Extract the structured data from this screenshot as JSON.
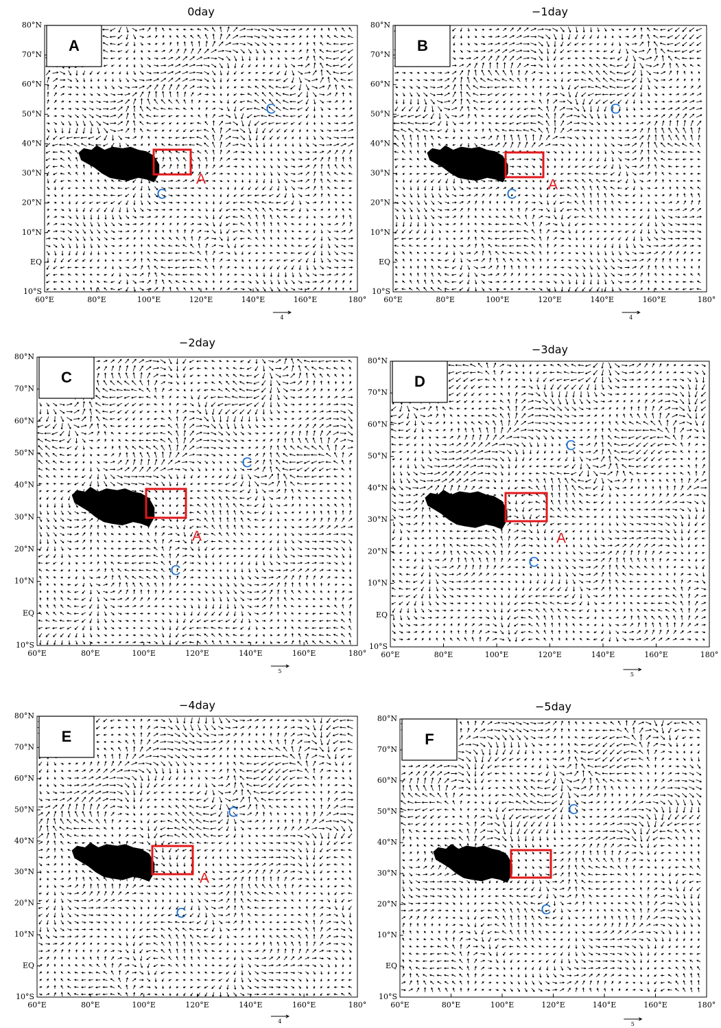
{
  "panels": [
    {
      "title": "0day",
      "label": "A",
      "annotations": [
        "C",
        "C",
        "A"
      ],
      "reference_vector": "4"
    },
    {
      "title": "−1day",
      "label": "B",
      "annotations": [
        "C",
        "C",
        "A"
      ],
      "reference_vector": "4"
    },
    {
      "title": "−2day",
      "label": "C",
      "annotations": [
        "C",
        "A",
        "C"
      ],
      "reference_vector": "5"
    },
    {
      "title": "−3day",
      "label": "D",
      "annotations": [
        "C",
        "A",
        "C"
      ],
      "reference_vector": "5"
    },
    {
      "title": "−4day",
      "label": "E",
      "annotations": [
        "C",
        "A",
        "C"
      ],
      "reference_vector": "4"
    },
    {
      "title": "−5day",
      "label": "F",
      "annotations": [
        "C",
        "C"
      ],
      "reference_vector": "5"
    }
  ],
  "axes": {
    "y_labels": [
      "80°N",
      "70°N",
      "60°N",
      "50°N",
      "40°N",
      "30°N",
      "20°N",
      "10°N",
      "EQ",
      "10°S"
    ],
    "x_labels": [
      "60°E",
      "80°E",
      "100°E",
      "120°E",
      "140°E",
      "160°E",
      "180°"
    ]
  }
}
